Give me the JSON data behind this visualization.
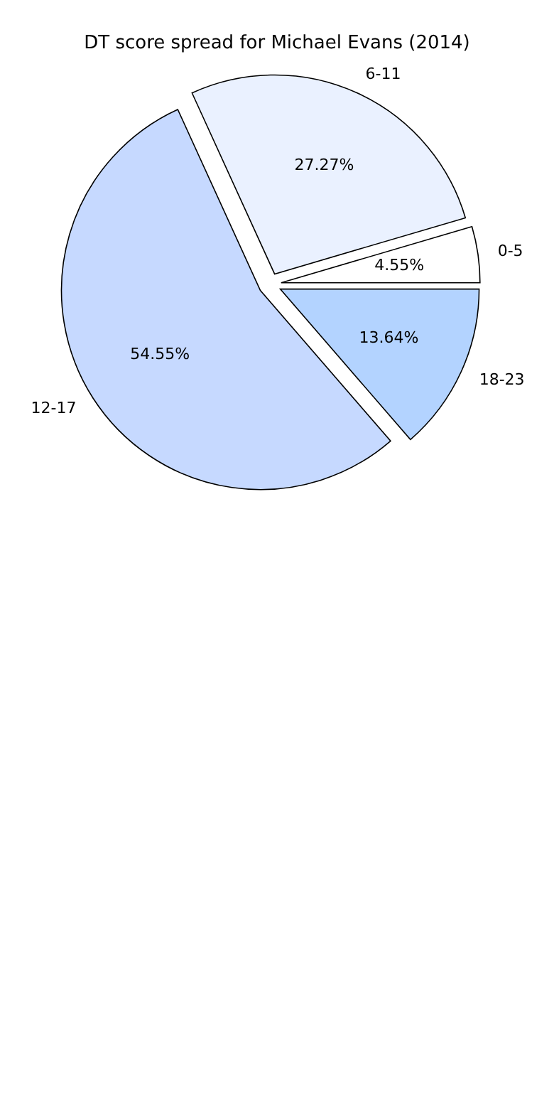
{
  "chart_data": {
    "type": "pie",
    "title": "DT score spread for Michael Evans (2014)",
    "categories": [
      "0-5",
      "6-11",
      "12-17",
      "18-23"
    ],
    "values": [
      4.55,
      27.27,
      54.55,
      13.64
    ],
    "value_labels": [
      "4.55%",
      "27.27%",
      "54.55%",
      "13.64%"
    ],
    "colors": [
      "#ffffff",
      "#eaf1ff",
      "#c6d9ff",
      "#b3d3ff"
    ]
  }
}
